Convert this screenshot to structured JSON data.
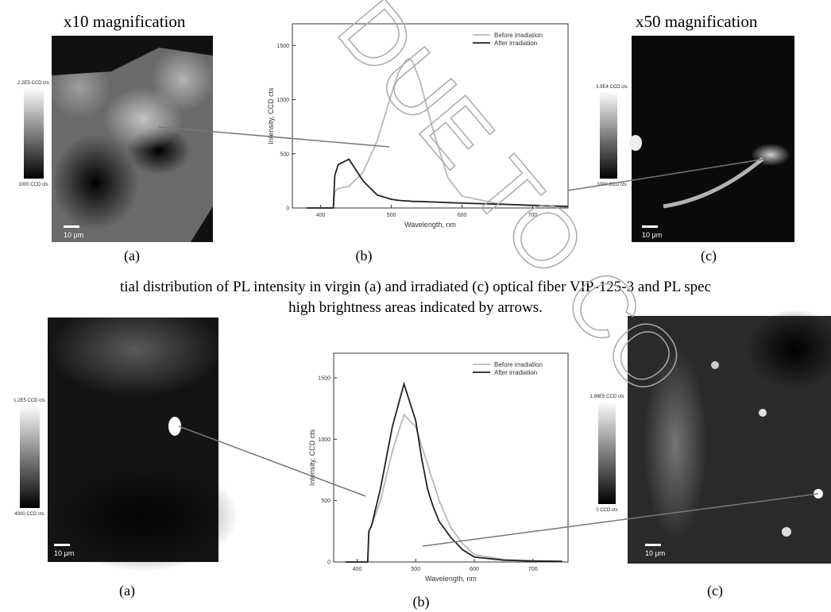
{
  "rows": [
    {
      "magnification_left": "x10 magnification",
      "magnification_right": "x50 magnification",
      "colorbar_left": {
        "max": "2.2E5 CCD cts",
        "min": "1000 CCD cts"
      },
      "colorbar_right": {
        "max": "3.9E4 CCD cts",
        "min": "1000 CCD cts"
      },
      "scale_left": "10 μm",
      "scale_right": "10 μm",
      "labels": [
        "(a)",
        "(b)",
        "(c)"
      ],
      "chart": {
        "type": "line",
        "x_label": "Wavelength, nm",
        "y_label": "Intensity, CCD cts",
        "x": [
          380,
          400,
          418,
          420,
          425,
          440,
          460,
          480,
          500,
          510,
          520,
          525,
          530,
          540,
          560,
          580,
          600,
          650,
          700,
          750
        ],
        "series": [
          {
            "name": "Before irradiation",
            "color": "#b8b8b8",
            "values": [
              0,
              0,
              0,
              150,
              180,
              200,
              330,
              620,
              1050,
              1250,
              1360,
              1380,
              1350,
              1180,
              700,
              280,
              110,
              40,
              20,
              10
            ]
          },
          {
            "name": "After irradiation",
            "color": "#222222",
            "values": [
              0,
              0,
              0,
              300,
              400,
              450,
              250,
              120,
              80,
              70,
              65,
              65,
              60,
              60,
              55,
              50,
              45,
              35,
              25,
              15
            ]
          }
        ],
        "xlim": [
          360,
          750
        ],
        "ylim": [
          0,
          1700
        ],
        "xticks": [
          400,
          500,
          600,
          700
        ],
        "yticks": [
          0,
          500,
          1000,
          1500
        ],
        "legend": "upper right"
      }
    },
    {
      "colorbar_left": {
        "max": "1.2E5 CCD cts",
        "min": "4000 CCD cts"
      },
      "colorbar_right": {
        "max": "1.96E5 CCD cts",
        "min": "0 CCD cts"
      },
      "scale_left": "10 μm",
      "scale_right": "10 μm",
      "labels": [
        "(a)",
        "(b)",
        "(c)"
      ],
      "chart": {
        "type": "line",
        "x_label": "Wavelength, nm",
        "y_label": "Intensity, CCD cts",
        "x": [
          380,
          400,
          418,
          420,
          425,
          440,
          460,
          480,
          500,
          510,
          520,
          525,
          530,
          540,
          560,
          580,
          600,
          650,
          700,
          750
        ],
        "series": [
          {
            "name": "Before irradiation",
            "color": "#b8b8b8",
            "values": [
              0,
              0,
              0,
              250,
              300,
              500,
              900,
              1200,
              1100,
              950,
              800,
              720,
              650,
              500,
              280,
              150,
              60,
              20,
              10,
              5
            ]
          },
          {
            "name": "After irradiation",
            "color": "#222222",
            "values": [
              0,
              0,
              0,
              250,
              300,
              600,
              1100,
              1450,
              1150,
              850,
              600,
              520,
              450,
              330,
              200,
              100,
              40,
              15,
              8,
              5
            ]
          }
        ],
        "xlim": [
          360,
          760
        ],
        "ylim": [
          0,
          1700
        ],
        "xticks": [
          400,
          500,
          600,
          700
        ],
        "yticks": [
          0,
          500,
          1000,
          1500
        ],
        "legend": "upper right"
      }
    }
  ],
  "caption": [
    "tial distribution of PL intensity in virgin (a) and irradiated (c) optical fiber VIP-125-3 and PL spec",
    "high brightness areas indicated by arrows."
  ],
  "watermark": "DUE TO CO"
}
